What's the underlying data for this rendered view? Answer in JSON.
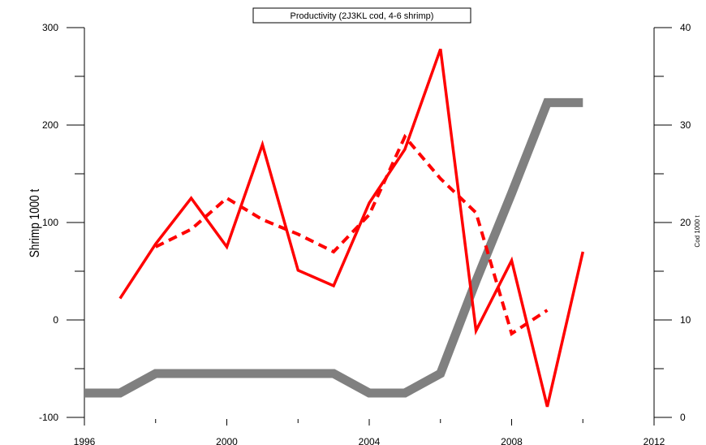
{
  "chart_data": {
    "type": "line",
    "title": "Productivity (2J3KL cod, 4-6 shrimp)",
    "xlabel": "",
    "ylabel": "Shrimp 1000 t",
    "y2label": "Cod 1000 t",
    "xlim": [
      1996,
      2012
    ],
    "ylim": [
      -100,
      300
    ],
    "y2lim": [
      0,
      40
    ],
    "x_ticks": [
      1996,
      2000,
      2004,
      2008,
      2012
    ],
    "y_ticks": [
      -100,
      0,
      100,
      200,
      300
    ],
    "y2_ticks": [
      0,
      10,
      20,
      30,
      40
    ],
    "grid": false,
    "series": [
      {
        "key": "shrimp-solid",
        "axis": "left",
        "style": "solid",
        "color": "#ff0000",
        "x": [
          1997,
          1998,
          1999,
          2000,
          2001,
          2002,
          2003,
          2004,
          2005,
          2006,
          2007,
          2008,
          2009,
          2010
        ],
        "values": [
          22,
          78,
          125,
          75,
          180,
          51,
          35,
          120,
          175,
          278,
          -11,
          61,
          -89,
          70
        ]
      },
      {
        "key": "shrimp-dashed",
        "axis": "left",
        "style": "dashed",
        "color": "#ff0000",
        "x": [
          1998,
          1999,
          2000,
          2001,
          2002,
          2003,
          2004,
          2005,
          2006,
          2007,
          2008,
          2009
        ],
        "values": [
          75,
          93,
          125,
          103,
          88,
          70,
          108,
          188,
          145,
          110,
          -14,
          10
        ]
      },
      {
        "key": "cod",
        "axis": "right",
        "style": "solid-thick",
        "color": "#808080",
        "x": [
          1996,
          1997,
          1998,
          1999,
          2000,
          2001,
          2002,
          2003,
          2004,
          2005,
          2006,
          2007,
          2008,
          2009,
          2010
        ],
        "values": [
          2.5,
          2.5,
          4.5,
          4.5,
          4.5,
          4.5,
          4.5,
          4.5,
          2.5,
          2.5,
          4.5,
          14,
          23,
          32.3,
          32.3
        ]
      }
    ]
  }
}
